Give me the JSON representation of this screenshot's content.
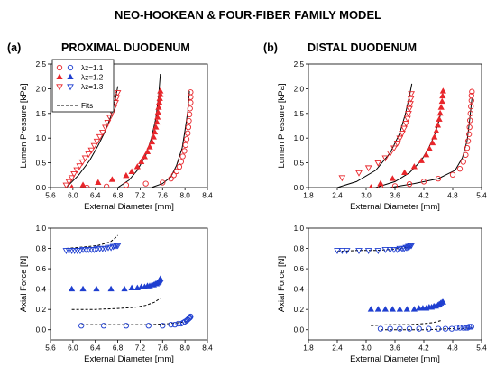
{
  "figure": {
    "title": "NEO-HOOKEAN & FOUR-FIBER FAMILY MODEL",
    "left": {
      "tag": "(a)",
      "heading": "PROXIMAL DUODENUM"
    },
    "right": {
      "tag": "(b)",
      "heading": "DISTAL DUODENUM"
    }
  },
  "legend": {
    "entries": [
      {
        "label": "λz=1.1",
        "color_red": "#e8262b",
        "color_blue": "#1f3fd0",
        "marker": "circle-open"
      },
      {
        "label": "λz=1.2",
        "color_red": "#e8262b",
        "color_blue": "#1f3fd0",
        "marker": "triangle-filled"
      },
      {
        "label": "λz=1.3",
        "color_red": "#e8262b",
        "color_blue": "#1f3fd0",
        "marker": "triangle-down-open"
      },
      {
        "label": "",
        "marker": "solid-line"
      },
      {
        "label": "Fits",
        "marker": "dashed-line"
      }
    ]
  },
  "colors": {
    "red": "#e8262b",
    "blue": "#1f3fd0",
    "fit": "#000000"
  },
  "chart_data": [
    {
      "id": "a-pressure",
      "type": "scatter",
      "xlabel": "External Diameter [mm]",
      "ylabel": "Lumen Pressure [kPa]",
      "xlim": [
        5.6,
        8.4
      ],
      "ylim": [
        0,
        2.5
      ],
      "xticks": [
        "5.6",
        "6.0",
        "6.4",
        "6.8",
        "7.2",
        "7.6",
        "8.0",
        "8.4"
      ],
      "yticks": [
        "0.0",
        "0.5",
        "1.0",
        "1.5",
        "2.0",
        "2.5"
      ],
      "series": [
        {
          "name": "λz=1.1",
          "marker": "circle-open",
          "color": "#e8262b",
          "x": [
            6.25,
            6.6,
            6.95,
            7.3,
            7.6,
            7.75,
            7.8,
            7.85,
            7.9,
            7.93,
            7.96,
            7.99,
            8.01,
            8.03,
            8.05,
            8.06,
            8.07,
            8.08,
            8.09,
            8.1,
            8.1,
            8.1
          ],
          "y": [
            0.0,
            0.02,
            0.05,
            0.08,
            0.1,
            0.18,
            0.25,
            0.33,
            0.42,
            0.52,
            0.63,
            0.74,
            0.86,
            0.98,
            1.1,
            1.22,
            1.35,
            1.48,
            1.6,
            1.72,
            1.83,
            1.93
          ]
        },
        {
          "name": "λz=1.2",
          "marker": "triangle-filled",
          "color": "#e8262b",
          "x": [
            5.98,
            6.18,
            6.45,
            6.7,
            6.95,
            7.05,
            7.15,
            7.22,
            7.28,
            7.33,
            7.37,
            7.41,
            7.44,
            7.46,
            7.48,
            7.5,
            7.51,
            7.52,
            7.53,
            7.54,
            7.55,
            7.56,
            7.56
          ],
          "y": [
            0.0,
            0.05,
            0.1,
            0.16,
            0.24,
            0.32,
            0.42,
            0.52,
            0.62,
            0.72,
            0.82,
            0.92,
            1.02,
            1.12,
            1.22,
            1.32,
            1.42,
            1.52,
            1.62,
            1.72,
            1.8,
            1.88,
            1.95
          ]
        },
        {
          "name": "λz=1.3",
          "marker": "triangle-down-open",
          "color": "#e8262b",
          "x": [
            5.88,
            5.93,
            5.98,
            6.02,
            6.07,
            6.12,
            6.17,
            6.22,
            6.28,
            6.33,
            6.38,
            6.43,
            6.48,
            6.53,
            6.58,
            6.62,
            6.66,
            6.7,
            6.73,
            6.76,
            6.78,
            6.8
          ],
          "y": [
            0.05,
            0.12,
            0.2,
            0.28,
            0.36,
            0.44,
            0.52,
            0.6,
            0.68,
            0.76,
            0.85,
            0.94,
            1.03,
            1.12,
            1.22,
            1.32,
            1.42,
            1.52,
            1.62,
            1.72,
            1.82,
            1.92
          ]
        },
        {
          "name": "",
          "marker": "solid-line",
          "color": "#000000",
          "x": [
            5.88,
            6.1,
            6.3,
            6.45,
            6.58,
            6.68,
            6.75,
            6.8
          ],
          "y": [
            0.0,
            0.25,
            0.55,
            0.85,
            1.15,
            1.45,
            1.75,
            2.05
          ]
        },
        {
          "name": "",
          "marker": "solid-line",
          "color": "#000000",
          "x": [
            6.8,
            7.0,
            7.15,
            7.3,
            7.4,
            7.48,
            7.53,
            7.56
          ],
          "y": [
            0.0,
            0.15,
            0.35,
            0.65,
            1.0,
            1.4,
            1.85,
            2.3
          ]
        },
        {
          "name": "",
          "marker": "solid-line",
          "color": "#000000",
          "x": [
            7.4,
            7.6,
            7.75,
            7.85,
            7.95,
            8.0,
            8.05,
            8.08
          ],
          "y": [
            0.0,
            0.08,
            0.22,
            0.45,
            0.8,
            1.15,
            1.55,
            1.95
          ]
        }
      ]
    },
    {
      "id": "b-pressure",
      "type": "scatter",
      "xlabel": "External Diameter [mm]",
      "ylabel": "Lumen Pressure [kPa]",
      "xlim": [
        1.8,
        5.4
      ],
      "ylim": [
        0,
        2.5
      ],
      "xticks": [
        "1.8",
        "2.4",
        "3.0",
        "3.6",
        "4.2",
        "4.8",
        "5.4"
      ],
      "yticks": [
        "0.0",
        "0.5",
        "1.0",
        "1.5",
        "2.0",
        "2.5"
      ],
      "series": [
        {
          "name": "λz=1.1",
          "marker": "circle-open",
          "color": "#e8262b",
          "x": [
            3.3,
            3.6,
            3.9,
            4.2,
            4.5,
            4.8,
            4.95,
            5.02,
            5.07,
            5.1,
            5.12,
            5.14,
            5.15,
            5.16,
            5.17,
            5.18,
            5.19,
            5.19,
            5.2
          ],
          "y": [
            0.0,
            0.03,
            0.07,
            0.12,
            0.18,
            0.26,
            0.38,
            0.52,
            0.66,
            0.8,
            0.94,
            1.08,
            1.22,
            1.36,
            1.5,
            1.64,
            1.76,
            1.86,
            1.94
          ]
        },
        {
          "name": "λz=1.2",
          "marker": "triangle-filled",
          "color": "#e8262b",
          "x": [
            3.1,
            3.3,
            3.55,
            3.8,
            4.0,
            4.15,
            4.25,
            4.32,
            4.38,
            4.42,
            4.46,
            4.49,
            4.52,
            4.54,
            4.56,
            4.58,
            4.59,
            4.6
          ],
          "y": [
            0.0,
            0.08,
            0.18,
            0.3,
            0.42,
            0.54,
            0.66,
            0.78,
            0.9,
            1.02,
            1.14,
            1.26,
            1.38,
            1.5,
            1.62,
            1.74,
            1.85,
            1.95
          ]
        },
        {
          "name": "λz=1.3",
          "marker": "triangle-down-open",
          "color": "#e8262b",
          "x": [
            2.5,
            2.85,
            3.05,
            3.25,
            3.4,
            3.5,
            3.58,
            3.65,
            3.7,
            3.75,
            3.79,
            3.83,
            3.86,
            3.88,
            3.9,
            3.92,
            3.93,
            3.94
          ],
          "y": [
            0.2,
            0.3,
            0.4,
            0.5,
            0.6,
            0.7,
            0.8,
            0.9,
            1.0,
            1.1,
            1.2,
            1.3,
            1.4,
            1.5,
            1.6,
            1.7,
            1.8,
            1.9
          ]
        },
        {
          "name": "",
          "marker": "solid-line",
          "color": "#000000",
          "x": [
            2.4,
            2.8,
            3.2,
            3.5,
            3.7,
            3.82,
            3.9,
            3.95
          ],
          "y": [
            0.0,
            0.12,
            0.35,
            0.7,
            1.1,
            1.5,
            1.85,
            2.1
          ]
        },
        {
          "name": "",
          "marker": "solid-line",
          "color": "#000000",
          "x": [
            3.2,
            3.6,
            3.9,
            4.15,
            4.3,
            4.42,
            4.5,
            4.55
          ],
          "y": [
            0.0,
            0.12,
            0.3,
            0.55,
            0.8,
            1.05,
            1.3,
            1.5
          ]
        },
        {
          "name": "",
          "marker": "solid-line",
          "color": "#000000",
          "x": [
            3.5,
            4.0,
            4.5,
            4.85,
            5.0,
            5.1,
            5.15,
            5.2
          ],
          "y": [
            0.0,
            0.08,
            0.18,
            0.35,
            0.6,
            0.95,
            1.35,
            1.8
          ]
        }
      ]
    },
    {
      "id": "a-force",
      "type": "scatter",
      "xlabel": "External Diameter [mm]",
      "ylabel": "Axial Force [N]",
      "xlim": [
        5.6,
        8.4
      ],
      "ylim": [
        -0.1,
        1.0
      ],
      "xticks": [
        "5.6",
        "6.0",
        "6.4",
        "6.8",
        "7.2",
        "7.6",
        "8.0",
        "8.4"
      ],
      "yticks": [
        "0.0",
        "0.2",
        "0.4",
        "0.6",
        "0.8",
        "1.0"
      ],
      "yticks_neg": [
        "-0.1"
      ],
      "series": [
        {
          "name": "λz=1.3",
          "marker": "triangle-down-open",
          "color": "#1f3fd0",
          "x": [
            5.88,
            5.93,
            5.98,
            6.03,
            6.08,
            6.13,
            6.18,
            6.23,
            6.28,
            6.33,
            6.38,
            6.43,
            6.48,
            6.53,
            6.58,
            6.63,
            6.68,
            6.72,
            6.75,
            6.78,
            6.8
          ],
          "y": [
            0.78,
            0.78,
            0.78,
            0.78,
            0.78,
            0.78,
            0.79,
            0.79,
            0.79,
            0.79,
            0.79,
            0.8,
            0.8,
            0.8,
            0.8,
            0.81,
            0.81,
            0.82,
            0.82,
            0.83,
            0.83
          ]
        },
        {
          "name": "λz=1.2",
          "marker": "triangle-filled",
          "color": "#1f3fd0",
          "x": [
            5.98,
            6.18,
            6.42,
            6.68,
            6.92,
            7.05,
            7.15,
            7.22,
            7.28,
            7.33,
            7.37,
            7.41,
            7.44,
            7.47,
            7.49,
            7.51,
            7.53,
            7.54,
            7.55,
            7.56
          ],
          "y": [
            0.4,
            0.4,
            0.4,
            0.4,
            0.4,
            0.41,
            0.41,
            0.42,
            0.42,
            0.43,
            0.43,
            0.44,
            0.44,
            0.45,
            0.45,
            0.46,
            0.47,
            0.48,
            0.49,
            0.5
          ]
        },
        {
          "name": "λz=1.1",
          "marker": "circle-open",
          "color": "#1f3fd0",
          "x": [
            6.15,
            6.55,
            6.95,
            7.35,
            7.6,
            7.75,
            7.82,
            7.88,
            7.93,
            7.97,
            8.0,
            8.03,
            8.05,
            8.07,
            8.08,
            8.09,
            8.1
          ],
          "y": [
            0.04,
            0.04,
            0.04,
            0.04,
            0.04,
            0.05,
            0.05,
            0.06,
            0.06,
            0.07,
            0.08,
            0.09,
            0.1,
            0.11,
            0.12,
            0.12,
            0.13
          ]
        },
        {
          "name": "",
          "marker": "dashed-line",
          "color": "#000000",
          "x": [
            5.88,
            6.1,
            6.3,
            6.45,
            6.58,
            6.68,
            6.75,
            6.8
          ],
          "y": [
            0.8,
            0.81,
            0.82,
            0.83,
            0.85,
            0.87,
            0.9,
            0.93
          ]
        },
        {
          "name": "",
          "marker": "dashed-line",
          "color": "#000000",
          "x": [
            5.98,
            6.4,
            6.8,
            7.1,
            7.3,
            7.45,
            7.56
          ],
          "y": [
            0.2,
            0.2,
            0.21,
            0.22,
            0.24,
            0.27,
            0.31
          ]
        },
        {
          "name": "",
          "marker": "dashed-line",
          "color": "#000000",
          "x": [
            6.15,
            6.6,
            7.0,
            7.4,
            7.7,
            7.9,
            8.05
          ],
          "y": [
            0.05,
            0.05,
            0.05,
            0.05,
            0.06,
            0.07,
            0.08
          ]
        }
      ]
    },
    {
      "id": "b-force",
      "type": "scatter",
      "xlabel": "External Diameter [mm]",
      "ylabel": "Axial Force [N]",
      "xlim": [
        1.8,
        5.4
      ],
      "ylim": [
        -0.1,
        1.0
      ],
      "xticks": [
        "1.8",
        "2.4",
        "3.0",
        "3.6",
        "4.2",
        "4.8",
        "5.4"
      ],
      "yticks": [
        "0.0",
        "0.2",
        "0.4",
        "0.6",
        "0.8",
        "1.0"
      ],
      "yticks_neg": [
        "-0.1"
      ],
      "series": [
        {
          "name": "λz=1.3",
          "marker": "triangle-down-open",
          "color": "#1f3fd0",
          "x": [
            2.4,
            2.5,
            2.6,
            2.85,
            3.05,
            3.25,
            3.4,
            3.5,
            3.58,
            3.65,
            3.7,
            3.75,
            3.79,
            3.83,
            3.86,
            3.88,
            3.9,
            3.92,
            3.94
          ],
          "y": [
            0.78,
            0.78,
            0.78,
            0.78,
            0.78,
            0.78,
            0.79,
            0.79,
            0.79,
            0.79,
            0.8,
            0.8,
            0.8,
            0.81,
            0.81,
            0.82,
            0.82,
            0.83,
            0.83
          ]
        },
        {
          "name": "λz=1.2",
          "marker": "triangle-filled",
          "color": "#1f3fd0",
          "x": [
            3.1,
            3.25,
            3.4,
            3.55,
            3.7,
            3.85,
            4.0,
            4.1,
            4.18,
            4.25,
            4.31,
            4.36,
            4.41,
            4.45,
            4.49,
            4.52,
            4.55,
            4.58,
            4.6
          ],
          "y": [
            0.2,
            0.2,
            0.2,
            0.2,
            0.2,
            0.2,
            0.2,
            0.21,
            0.21,
            0.21,
            0.22,
            0.22,
            0.23,
            0.23,
            0.24,
            0.25,
            0.26,
            0.27,
            0.27
          ]
        },
        {
          "name": "λz=1.1",
          "marker": "circle-open",
          "color": "#1f3fd0",
          "x": [
            3.3,
            3.5,
            3.7,
            3.9,
            4.1,
            4.3,
            4.5,
            4.65,
            4.78,
            4.88,
            4.95,
            5.02,
            5.07,
            5.11,
            5.14,
            5.17,
            5.19
          ],
          "y": [
            0.01,
            0.01,
            0.01,
            0.01,
            0.01,
            0.01,
            0.01,
            0.01,
            0.01,
            0.02,
            0.02,
            0.02,
            0.02,
            0.02,
            0.03,
            0.03,
            0.03
          ]
        },
        {
          "name": "",
          "marker": "dashed-line",
          "color": "#000000",
          "x": [
            2.4,
            2.8,
            3.2,
            3.5,
            3.7,
            3.85,
            3.95
          ],
          "y": [
            0.77,
            0.78,
            0.78,
            0.79,
            0.8,
            0.81,
            0.81
          ]
        },
        {
          "name": "",
          "marker": "dashed-line",
          "color": "#000000",
          "x": [
            3.1,
            3.5,
            3.9,
            4.2,
            4.4,
            4.55
          ],
          "y": [
            0.04,
            0.05,
            0.05,
            0.06,
            0.07,
            0.09
          ]
        },
        {
          "name": "",
          "marker": "dashed-line",
          "color": "#000000",
          "x": [
            3.3,
            3.8,
            4.3,
            4.7,
            5.0,
            5.2
          ],
          "y": [
            0.0,
            0.0,
            0.0,
            0.01,
            0.01,
            0.02
          ]
        }
      ]
    }
  ]
}
